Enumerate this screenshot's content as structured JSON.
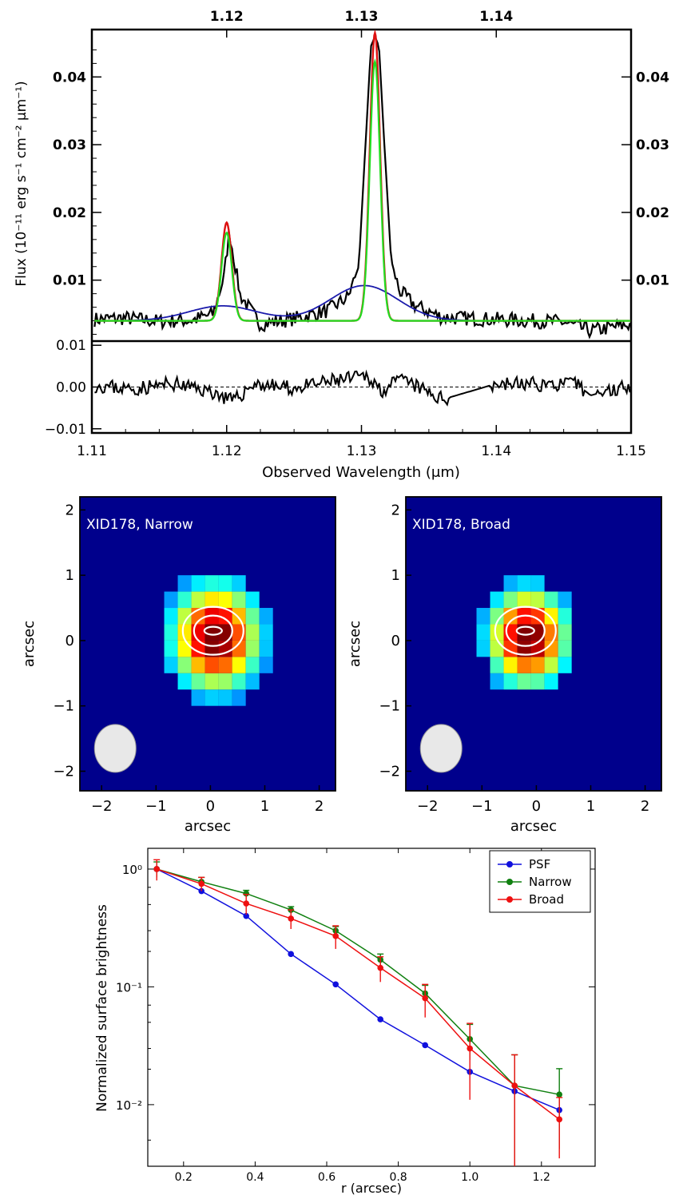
{
  "chart_data": [
    {
      "type": "line",
      "panel": "spectrum",
      "xlabel": "Observed Wavelength (μm)",
      "ylabel": "Flux (10⁻¹¹ erg s⁻¹ cm⁻² μm⁻¹)",
      "xlim": [
        1.11,
        1.15
      ],
      "ylim": [
        0.001,
        0.047
      ],
      "x_ticks": [
        "1.11",
        "1.12",
        "1.13",
        "1.14",
        "1.15"
      ],
      "top_ticks": [
        "1.12",
        "1.13",
        "1.14"
      ],
      "y_ticks": [
        "0.01",
        "0.02",
        "0.03",
        "0.04"
      ],
      "series": [
        {
          "color": "#000000",
          "x": [
            1.11,
            1.1125,
            1.115,
            1.1175,
            1.119,
            1.1198,
            1.1202,
            1.121,
            1.1225,
            1.125,
            1.1275,
            1.129,
            1.1298,
            1.1303,
            1.1307,
            1.131,
            1.1313,
            1.1317,
            1.1322,
            1.1328,
            1.134,
            1.136,
            1.14,
            1.145,
            1.147,
            1.15
          ],
          "y": [
            0.0042,
            0.0044,
            0.0039,
            0.0041,
            0.005,
            0.0105,
            0.0172,
            0.0078,
            0.0035,
            0.0043,
            0.0055,
            0.0075,
            0.012,
            0.03,
            0.0445,
            0.046,
            0.0445,
            0.03,
            0.013,
            0.0085,
            0.0062,
            0.0045,
            0.0042,
            0.0038,
            0.0025,
            0.0035
          ]
        },
        {
          "color": "#dd1111",
          "line_centers": [
            1.12,
            1.131
          ],
          "line_peaks": [
            0.0185,
            0.0465
          ],
          "narrow_sigma": 0.00038,
          "continuum": 0.004
        },
        {
          "color": "#22dd22",
          "line_centers": [
            1.12,
            1.131
          ],
          "line_peaks": [
            0.017,
            0.0423
          ],
          "narrow_sigma": 0.00038,
          "continuum": 0.004
        },
        {
          "color": "#1a1aaa",
          "line_centers": [
            1.1197,
            1.1302
          ],
          "line_peaks": [
            0.0062,
            0.0092
          ],
          "broad_sigma": 0.0025,
          "continuum": 0.004
        }
      ]
    },
    {
      "type": "line",
      "panel": "residual",
      "xlim": [
        1.11,
        1.15
      ],
      "ylim": [
        -0.011,
        0.011
      ],
      "y_ticks": [
        "0.01",
        "0.00",
        "−0.01"
      ],
      "x": [
        1.11,
        1.113,
        1.116,
        1.119,
        1.1205,
        1.122,
        1.125,
        1.128,
        1.1305,
        1.1315,
        1.133,
        1.136,
        1.14,
        1.146,
        1.147,
        1.15
      ],
      "y": [
        0.0005,
        -0.0005,
        0.0008,
        -0.0012,
        -0.0035,
        0.0008,
        -0.0004,
        0.0015,
        0.0025,
        -0.0008,
        0.0018,
        -0.003,
        0.0008,
        0.0006,
        -0.002,
        0.0005
      ]
    },
    {
      "type": "heatmap",
      "panel": "map-narrow",
      "label": "XID178, Narrow",
      "xlabel": "arcsec",
      "ylabel": "arcsec",
      "xlim": [
        -2.4,
        2.3
      ],
      "ylim": [
        -2.3,
        2.2
      ],
      "x_ticks": [
        "−2",
        "−1",
        "0",
        "1",
        "2"
      ],
      "y_ticks": [
        "2",
        "1",
        "0",
        "−1",
        "−2"
      ],
      "pixel_scale": 0.25,
      "peak": [
        0.1,
        0.05
      ],
      "sigma": 0.55
    },
    {
      "type": "heatmap",
      "panel": "map-broad",
      "label": "XID178, Broad",
      "xlabel": "arcsec",
      "ylabel": "arcsec",
      "xlim": [
        -2.4,
        2.3
      ],
      "ylim": [
        -2.3,
        2.2
      ],
      "x_ticks": [
        "−2",
        "−1",
        "0",
        "1",
        "2"
      ],
      "y_ticks": [
        "2",
        "1",
        "0",
        "−1",
        "−2"
      ],
      "pixel_scale": 0.25,
      "peak": [
        -0.15,
        0.05
      ],
      "sigma": 0.5
    },
    {
      "type": "line",
      "panel": "profile",
      "xlabel": "r (arcsec)",
      "ylabel": "Normalized surface brightness",
      "xlim": [
        0.1,
        1.35
      ],
      "ylim": [
        0.003,
        1.5
      ],
      "yscale": "log",
      "x_ticks": [
        "0.2",
        "0.4",
        "0.6",
        "0.8",
        "1.0",
        "1.2"
      ],
      "y_ticks": [
        "10⁰",
        "10⁻¹",
        "10⁻²"
      ],
      "legend_position": "top-right",
      "x": [
        0.125,
        0.25,
        0.375,
        0.5,
        0.625,
        0.75,
        0.875,
        1.0,
        1.125,
        1.25
      ],
      "series": [
        {
          "name": "PSF",
          "color": "#1010dd",
          "values": [
            1.0,
            0.65,
            0.4,
            0.19,
            0.105,
            0.053,
            0.032,
            0.019,
            0.013,
            0.009
          ]
        },
        {
          "name": "Narrow",
          "color": "#108010",
          "values": [
            1.0,
            0.78,
            0.62,
            0.45,
            0.3,
            0.17,
            0.088,
            0.036,
            0.0145,
            0.0122
          ],
          "errors": [
            0.15,
            0.07,
            0.04,
            0.03,
            0.025,
            0.02,
            0.015,
            0.012,
            0.012,
            0.008
          ]
        },
        {
          "name": "Broad",
          "color": "#ee1010",
          "values": [
            1.0,
            0.75,
            0.51,
            0.38,
            0.27,
            0.145,
            0.08,
            0.03,
            0.0145,
            0.0075
          ],
          "errors": [
            0.2,
            0.1,
            0.1,
            0.07,
            0.06,
            0.035,
            0.025,
            0.019,
            0.012,
            0.004
          ]
        }
      ]
    }
  ]
}
